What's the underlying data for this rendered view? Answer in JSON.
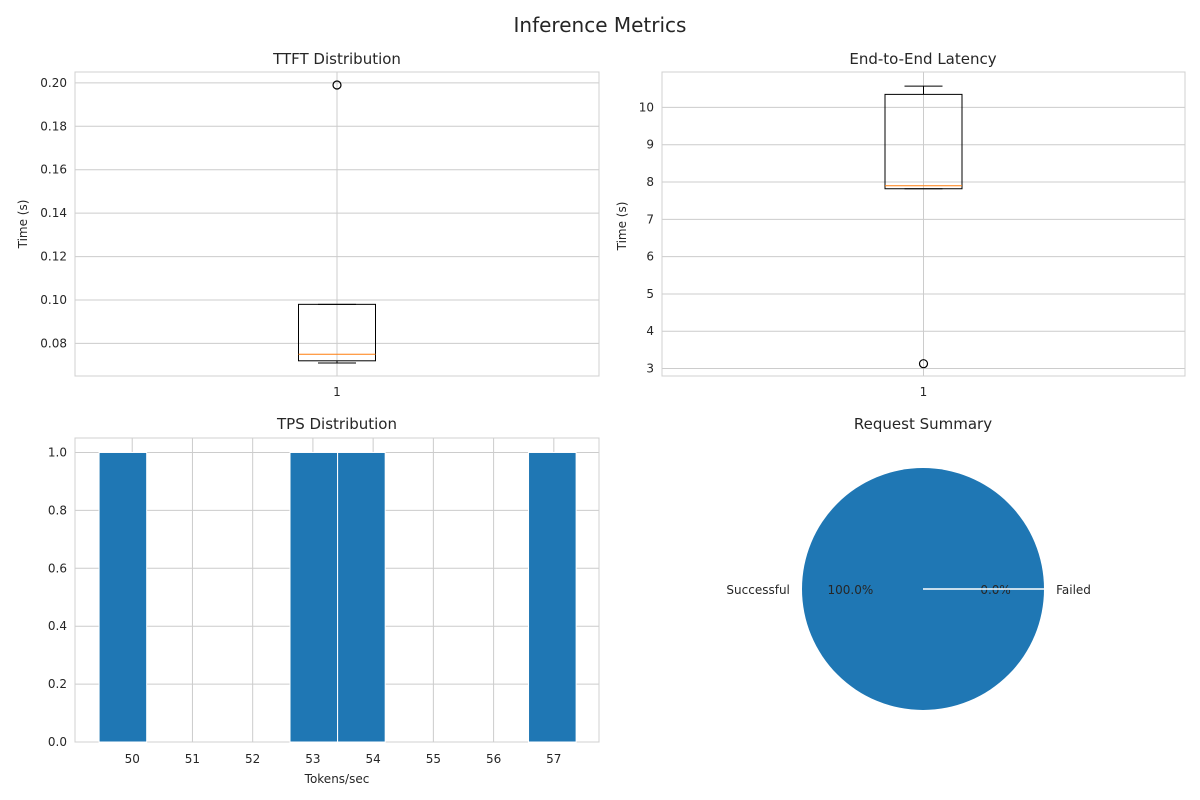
{
  "figure": {
    "suptitle": "Inference Metrics"
  },
  "colors": {
    "bar": "#1f77b4",
    "median": "#ff7f0e",
    "box": "#000000",
    "grid": "#cccccc",
    "pie_edge": "#ffffff"
  },
  "chart_data": [
    {
      "type": "box",
      "title": "TTFT Distribution",
      "xlabel": "",
      "ylabel": "Time (s)",
      "categories": [
        "1"
      ],
      "ylim": [
        0.065,
        0.205
      ],
      "yticks": [
        0.08,
        0.1,
        0.12,
        0.14,
        0.16,
        0.18,
        0.2
      ],
      "ytick_labels": [
        "0.08",
        "0.10",
        "0.12",
        "0.14",
        "0.16",
        "0.18",
        "0.20"
      ],
      "grid": true,
      "box": {
        "whisker_low": 0.071,
        "q1": 0.072,
        "median": 0.075,
        "q3": 0.098,
        "whisker_high": 0.098,
        "outliers": [
          0.199
        ]
      }
    },
    {
      "type": "box",
      "title": "End-to-End Latency",
      "xlabel": "",
      "ylabel": "Time (s)",
      "categories": [
        "1"
      ],
      "ylim": [
        2.8,
        10.95
      ],
      "yticks": [
        3,
        4,
        5,
        6,
        7,
        8,
        9,
        10
      ],
      "ytick_labels": [
        "3",
        "4",
        "5",
        "6",
        "7",
        "8",
        "9",
        "10"
      ],
      "grid": true,
      "box": {
        "whisker_low": 7.82,
        "q1": 7.82,
        "median": 7.9,
        "q3": 10.35,
        "whisker_high": 10.57,
        "outliers": [
          3.13
        ]
      }
    },
    {
      "type": "bar",
      "title": "TPS Distribution",
      "xlabel": "Tokens/sec",
      "ylabel": "",
      "xlim": [
        49.05,
        57.75
      ],
      "ylim": [
        0,
        1.05
      ],
      "xticks": [
        50,
        51,
        52,
        53,
        54,
        55,
        56,
        57
      ],
      "xtick_labels": [
        "50",
        "51",
        "52",
        "53",
        "54",
        "55",
        "56",
        "57"
      ],
      "yticks": [
        0.0,
        0.2,
        0.4,
        0.6,
        0.8,
        1.0
      ],
      "ytick_labels": [
        "0.0",
        "0.2",
        "0.4",
        "0.6",
        "0.8",
        "1.0"
      ],
      "grid": true,
      "bins": [
        {
          "start": 49.45,
          "end": 50.24,
          "count": 1
        },
        {
          "start": 52.62,
          "end": 53.41,
          "count": 1
        },
        {
          "start": 53.41,
          "end": 54.2,
          "count": 1
        },
        {
          "start": 56.58,
          "end": 57.37,
          "count": 1
        }
      ]
    },
    {
      "type": "pie",
      "title": "Request Summary",
      "slices": [
        {
          "label": "Successful",
          "value": 100.0,
          "pct_label": "100.0%",
          "color": "#1f77b4"
        },
        {
          "label": "Failed",
          "value": 0.0,
          "pct_label": "0.0%",
          "color": "#ff7f0e"
        }
      ]
    }
  ]
}
